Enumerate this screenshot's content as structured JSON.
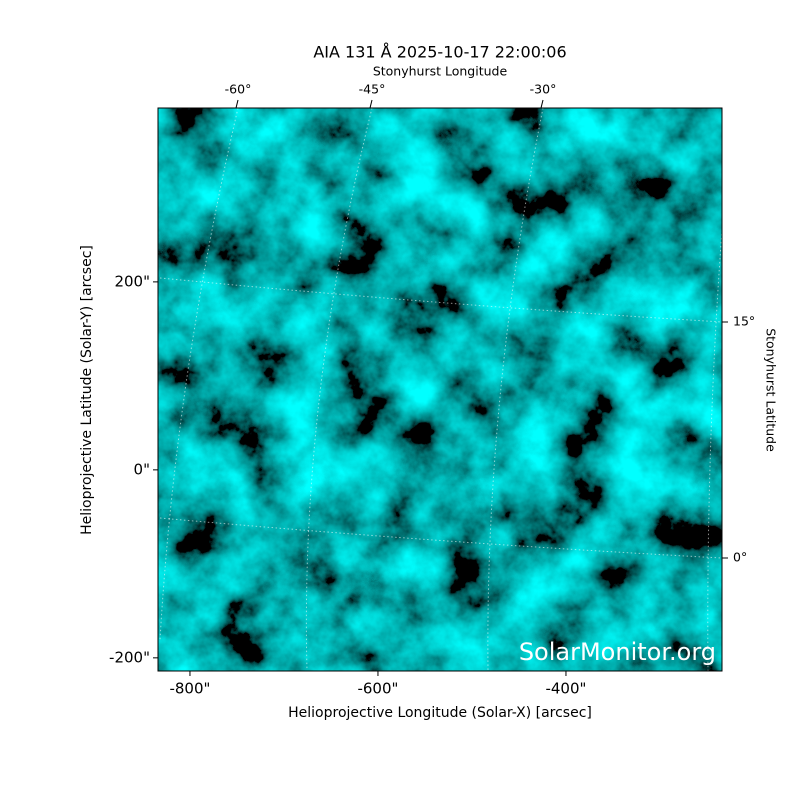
{
  "chart_data": {
    "type": "image",
    "title": "AIA 131 Å 2025-10-17 22:00:06",
    "x_label": "Helioprojective Longitude (Solar-X) [arcsec]",
    "y_label": "Helioprojective Latitude (Solar-Y) [arcsec]",
    "x2_label": "Stonyhurst Longitude",
    "y2_label": "Stonyhurst Latitude",
    "watermark": "SolarMonitor.org",
    "xlim": [
      -834,
      -234
    ],
    "ylim": [
      -214,
      385
    ],
    "xticks": [
      {
        "value": -800,
        "label": "-800\""
      },
      {
        "value": -600,
        "label": "-600\""
      },
      {
        "value": -400,
        "label": "-400\""
      }
    ],
    "yticks": [
      {
        "value": 200,
        "label": "200\""
      },
      {
        "value": 0,
        "label": "0\""
      },
      {
        "value": -200,
        "label": "-200\""
      }
    ],
    "x2ticks": [
      {
        "value": -60,
        "label": "-60°"
      },
      {
        "value": -45,
        "label": "-45°"
      },
      {
        "value": -30,
        "label": "-30°"
      }
    ],
    "y2ticks": [
      {
        "value": 15,
        "label": "15°"
      },
      {
        "value": 0,
        "label": "0°"
      }
    ],
    "colormap": "#00a8a8"
  }
}
